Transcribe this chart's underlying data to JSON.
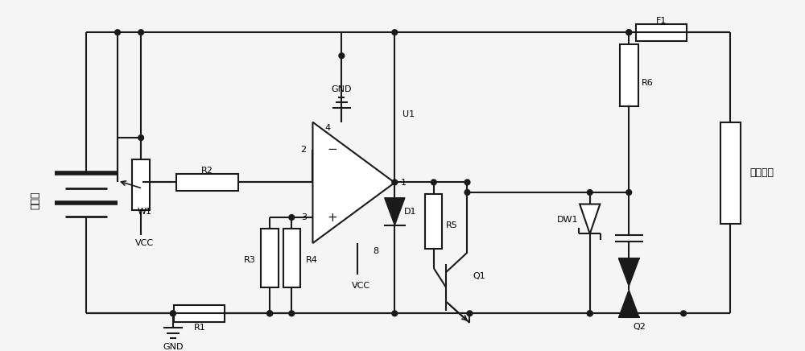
{
  "bg_color": "#f5f5f5",
  "line_color": "#1a1a1a",
  "line_width": 1.5,
  "fig_width": 10.0,
  "fig_height": 4.36,
  "labels": {
    "battery": "蓄电池",
    "load": "用电设备",
    "GND_top": "GND",
    "GND_bot": "GND",
    "VCC_left": "VCC",
    "VCC_bot": "VCC",
    "R1": "R1",
    "R2": "R2",
    "R3": "R3",
    "R4": "R4",
    "R5": "R5",
    "R6": "R6",
    "W1": "W1",
    "D1": "D1",
    "DW1": "DW1",
    "Q1": "Q1",
    "Q2": "Q2",
    "F1": "F1",
    "U1": "U1",
    "pin2": "2",
    "pin3": "3",
    "pin1": "1",
    "pin4": "4",
    "pin8": "8"
  }
}
